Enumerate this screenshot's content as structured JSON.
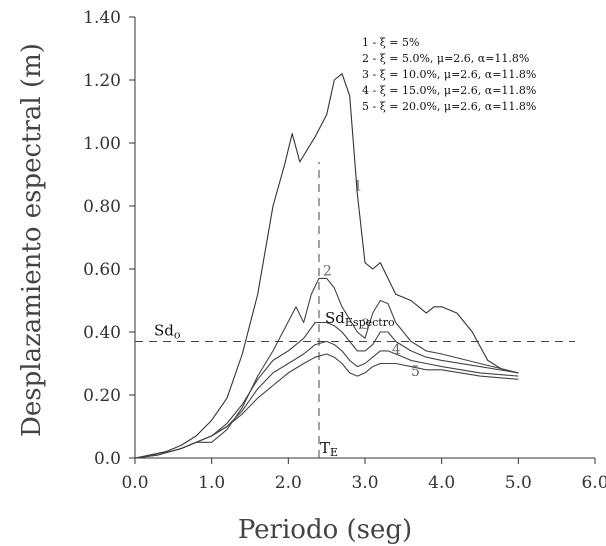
{
  "chart_data": {
    "type": "line",
    "title": "",
    "xlabel": "Periodo (seg)",
    "ylabel": "Desplazamiento espectral  (m)",
    "xlim": [
      0,
      6
    ],
    "ylim": [
      0,
      1.4
    ],
    "x_ticks": [
      "0.0",
      "1.0",
      "2.0",
      "3.0",
      "4.0",
      "5.0",
      "6.0"
    ],
    "y_ticks": [
      "0.0",
      "0.20",
      "0.40",
      "0.60",
      "0.80",
      "1.00",
      "1.20",
      "1.40"
    ],
    "grid": false,
    "legend_position": "top-right",
    "legend": [
      "1 -  ξ = 5%",
      "2 -  ξ = 5.0%,   μ=2.6,  α=11.8%",
      "3 -  ξ = 10.0%,   μ=2.6,  α=11.8%",
      "4 -  ξ = 15.0%,  μ=2.6,  α=11.8%",
      "5 -  ξ = 20.0%,  μ=2.6,  α=11.8%"
    ],
    "series": [
      {
        "label": "1",
        "x": [
          0,
          0.2,
          0.4,
          0.6,
          0.8,
          1.0,
          1.2,
          1.4,
          1.6,
          1.8,
          1.95,
          2.05,
          2.15,
          2.35,
          2.5,
          2.6,
          2.7,
          2.8,
          2.9,
          3.0,
          3.1,
          3.2,
          3.3,
          3.4,
          3.6,
          3.8,
          3.9,
          4.0,
          4.2,
          4.4,
          4.6,
          4.8,
          5.0
        ],
        "y": [
          0,
          0.01,
          0.02,
          0.04,
          0.07,
          0.12,
          0.19,
          0.33,
          0.52,
          0.8,
          0.93,
          1.03,
          0.94,
          1.02,
          1.09,
          1.2,
          1.22,
          1.15,
          0.84,
          0.62,
          0.6,
          0.62,
          0.57,
          0.52,
          0.5,
          0.46,
          0.48,
          0.48,
          0.46,
          0.4,
          0.31,
          0.28,
          0.27
        ]
      },
      {
        "label": "2",
        "x": [
          0,
          0.3,
          0.6,
          0.8,
          1.0,
          1.2,
          1.4,
          1.6,
          1.8,
          1.95,
          2.1,
          2.2,
          2.3,
          2.4,
          2.5,
          2.6,
          2.7,
          2.8,
          2.9,
          3.0,
          3.1,
          3.2,
          3.3,
          3.4,
          3.6,
          3.8,
          4.0,
          4.5,
          5.0
        ],
        "y": [
          0,
          0.01,
          0.03,
          0.05,
          0.05,
          0.09,
          0.16,
          0.26,
          0.34,
          0.41,
          0.48,
          0.43,
          0.52,
          0.57,
          0.57,
          0.54,
          0.48,
          0.44,
          0.4,
          0.38,
          0.46,
          0.5,
          0.49,
          0.43,
          0.37,
          0.34,
          0.33,
          0.3,
          0.27
        ]
      },
      {
        "label": "3",
        "x": [
          0,
          0.3,
          0.6,
          0.8,
          1.0,
          1.2,
          1.4,
          1.6,
          1.8,
          2.0,
          2.2,
          2.35,
          2.5,
          2.6,
          2.7,
          2.8,
          2.9,
          3.0,
          3.1,
          3.2,
          3.3,
          3.4,
          3.6,
          3.8,
          4.0,
          4.5,
          5.0
        ],
        "y": [
          0,
          0.01,
          0.03,
          0.05,
          0.07,
          0.11,
          0.17,
          0.25,
          0.31,
          0.34,
          0.38,
          0.43,
          0.43,
          0.42,
          0.4,
          0.37,
          0.34,
          0.34,
          0.36,
          0.4,
          0.4,
          0.37,
          0.34,
          0.32,
          0.31,
          0.29,
          0.27
        ]
      },
      {
        "label": "4",
        "x": [
          0,
          0.3,
          0.6,
          0.8,
          1.0,
          1.2,
          1.4,
          1.6,
          1.8,
          2.0,
          2.2,
          2.35,
          2.5,
          2.6,
          2.7,
          2.8,
          2.9,
          3.0,
          3.1,
          3.2,
          3.3,
          3.4,
          3.6,
          3.8,
          4.0,
          4.5,
          5.0
        ],
        "y": [
          0,
          0.01,
          0.03,
          0.05,
          0.07,
          0.1,
          0.15,
          0.22,
          0.27,
          0.3,
          0.33,
          0.36,
          0.37,
          0.36,
          0.34,
          0.31,
          0.29,
          0.3,
          0.32,
          0.34,
          0.34,
          0.33,
          0.31,
          0.3,
          0.29,
          0.27,
          0.26
        ]
      },
      {
        "label": "5",
        "x": [
          0,
          0.3,
          0.6,
          0.8,
          1.0,
          1.2,
          1.4,
          1.6,
          1.8,
          2.0,
          2.2,
          2.35,
          2.5,
          2.6,
          2.7,
          2.8,
          2.9,
          3.0,
          3.1,
          3.2,
          3.3,
          3.4,
          3.6,
          3.8,
          4.0,
          4.5,
          5.0
        ],
        "y": [
          0,
          0.01,
          0.03,
          0.05,
          0.07,
          0.1,
          0.14,
          0.19,
          0.23,
          0.27,
          0.3,
          0.32,
          0.33,
          0.32,
          0.3,
          0.27,
          0.26,
          0.27,
          0.29,
          0.3,
          0.3,
          0.3,
          0.29,
          0.28,
          0.28,
          0.26,
          0.25
        ]
      }
    ],
    "reference_lines": {
      "sd0_y": 0.37,
      "te_x": 2.4
    },
    "annotations": {
      "sd0_main": "Sd",
      "sd0_sub": "o",
      "sd_esp_main": "Sd",
      "sd_esp_sub": "Espectro",
      "te_main": "T",
      "te_sub": "E"
    }
  }
}
